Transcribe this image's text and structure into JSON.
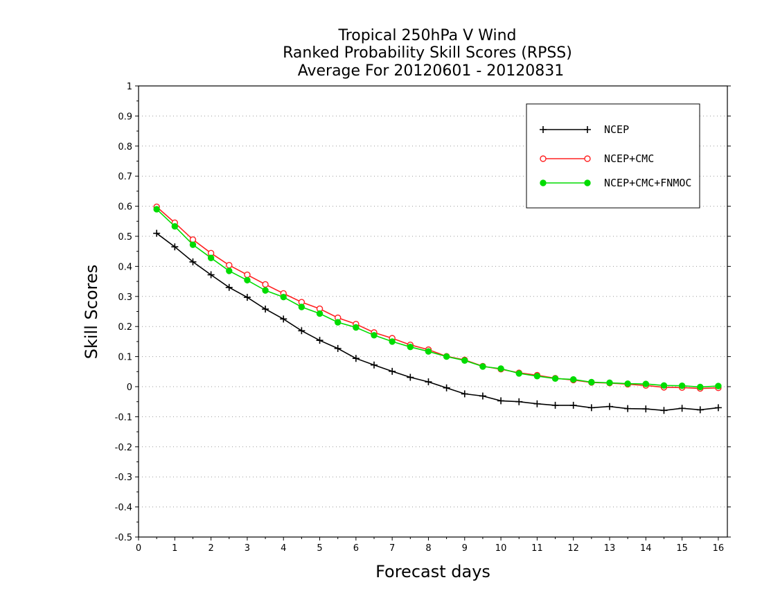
{
  "chart_data": {
    "type": "line",
    "title": [
      "Tropical 250hPa V Wind",
      "Ranked Probability Skill Scores (RPSS)",
      "Average For 20120601 - 20120831"
    ],
    "xlabel": "Forecast days",
    "ylabel": "Skill Scores",
    "xlim": [
      0,
      16.25
    ],
    "ylim": [
      -0.5,
      1
    ],
    "xticks": [
      0,
      1,
      2,
      3,
      4,
      5,
      6,
      7,
      8,
      9,
      10,
      11,
      12,
      13,
      14,
      15,
      16
    ],
    "xtick_labels": [
      "0",
      "1",
      "2",
      "3",
      "4",
      "5",
      "6",
      "7",
      "8",
      "9",
      "10",
      "11",
      "12",
      "13",
      "14",
      "15",
      "16"
    ],
    "yticks": [
      -0.5,
      -0.4,
      -0.3,
      -0.2,
      -0.1,
      0,
      0.1,
      0.2,
      0.3,
      0.4,
      0.5,
      0.6,
      0.7,
      0.8,
      0.9,
      1
    ],
    "ytick_labels": [
      "-0.5",
      "-0.4",
      "-0.3",
      "-0.2",
      "-0.1",
      "0",
      "0.1",
      "0.2",
      "0.3",
      "0.4",
      "0.5",
      "0.6",
      "0.7",
      "0.8",
      "0.9",
      "1"
    ],
    "grid": true,
    "legend_position": "top-right",
    "x": [
      0.5,
      1,
      1.5,
      2,
      2.5,
      3,
      3.5,
      4,
      4.5,
      5,
      5.5,
      6,
      6.5,
      7,
      7.5,
      8,
      8.5,
      9,
      9.5,
      10,
      10.5,
      11,
      11.5,
      12,
      12.5,
      13,
      13.5,
      14,
      14.5,
      15,
      15.5,
      16
    ],
    "series": [
      {
        "name": "NCEP",
        "color": "#000000",
        "marker": "plus",
        "values": [
          0.51,
          0.465,
          0.415,
          0.372,
          0.33,
          0.297,
          0.258,
          0.225,
          0.186,
          0.154,
          0.127,
          0.094,
          0.072,
          0.051,
          0.031,
          0.016,
          -0.004,
          -0.024,
          -0.031,
          -0.047,
          -0.05,
          -0.057,
          -0.062,
          -0.062,
          -0.07,
          -0.066,
          -0.073,
          -0.074,
          -0.079,
          -0.072,
          -0.077,
          -0.07
        ]
      },
      {
        "name": "NCEP+CMC",
        "color": "#ff2020",
        "marker": "open-circle",
        "values": [
          0.598,
          0.545,
          0.489,
          0.444,
          0.404,
          0.372,
          0.34,
          0.31,
          0.281,
          0.259,
          0.229,
          0.208,
          0.18,
          0.161,
          0.139,
          0.123,
          0.101,
          0.089,
          0.068,
          0.058,
          0.046,
          0.038,
          0.028,
          0.022,
          0.014,
          0.012,
          0.008,
          0.004,
          -0.002,
          -0.003,
          -0.006,
          -0.004
        ]
      },
      {
        "name": "NCEP+CMC+FNMOC",
        "color": "#00dc00",
        "marker": "filled-circle",
        "values": [
          0.59,
          0.533,
          0.472,
          0.428,
          0.385,
          0.354,
          0.32,
          0.298,
          0.265,
          0.243,
          0.214,
          0.197,
          0.171,
          0.15,
          0.132,
          0.117,
          0.1,
          0.087,
          0.067,
          0.06,
          0.044,
          0.035,
          0.027,
          0.024,
          0.015,
          0.013,
          0.01,
          0.009,
          0.004,
          0.003,
          -0.001,
          0.002
        ]
      }
    ]
  }
}
